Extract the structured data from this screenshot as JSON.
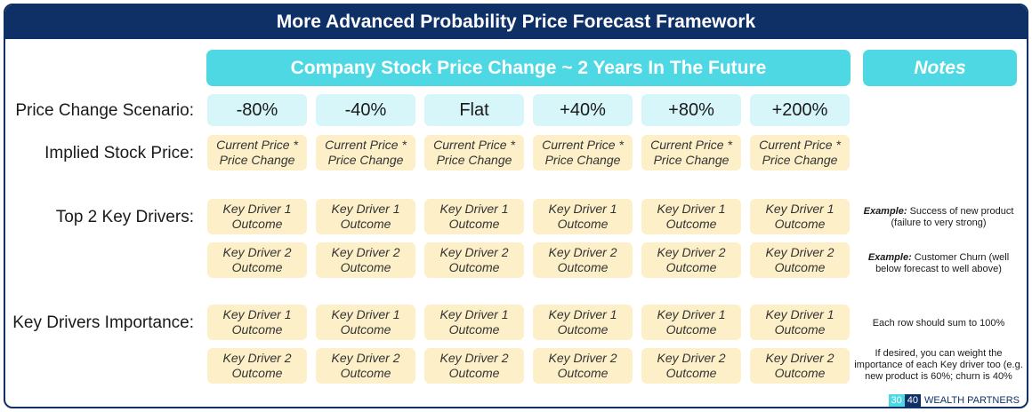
{
  "title": "More Advanced Probability Price Forecast Framework",
  "header": "Company Stock Price Change ~ 2 Years In The Future",
  "notes_header": "Notes",
  "labels": {
    "scenario": "Price Change Scenario:",
    "implied": "Implied Stock Price:",
    "drivers": "Top 2 Key Drivers:",
    "importance": "Key Drivers Importance:"
  },
  "scenarios": [
    "-80%",
    "-40%",
    "Flat",
    "+40%",
    "+80%",
    "+200%"
  ],
  "implied_text": [
    "Current Price *",
    "Price Change"
  ],
  "driver1_text": [
    "Key Driver 1",
    "Outcome"
  ],
  "driver2_text": [
    "Key Driver 2",
    "Outcome"
  ],
  "notes": {
    "n1_bold": "Example:",
    "n1_rest": " Success of new product (failure to very strong)",
    "n2_bold": "Example:",
    "n2_rest": " Customer Churn (well below forecast to well above)",
    "n3": "Each row should sum to 100%",
    "n4": "If desired, you can weight the importance of each Key driver too (e.g. new product is 60%; churn is 40%"
  },
  "brand": {
    "a": "30",
    "b": "40",
    "name": "WEALTH PARTNERS"
  }
}
